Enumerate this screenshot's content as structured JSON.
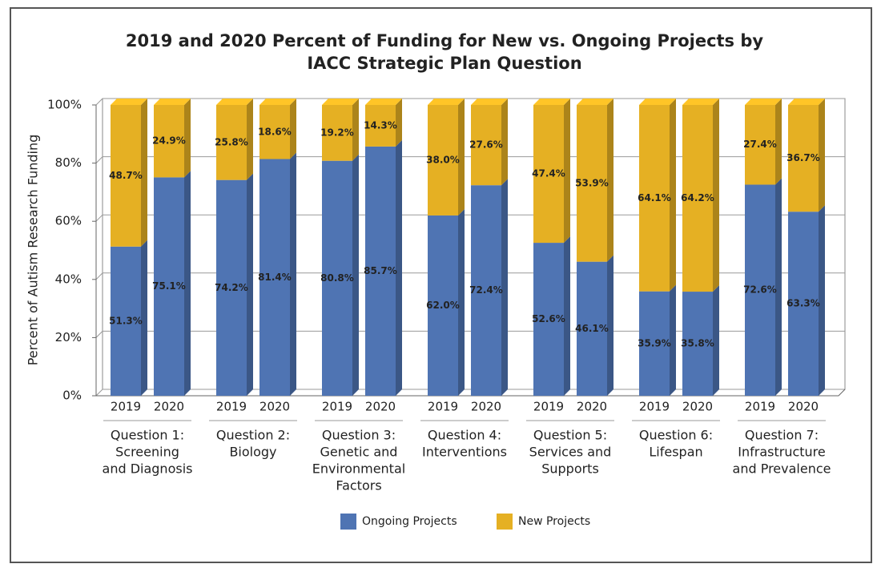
{
  "chart_data": {
    "type": "stacked-bar-3d",
    "title": [
      "2019 and 2020 Percent of Funding for New vs. Ongoing Projects by",
      "IACC Strategic Plan Question"
    ],
    "ylabel": "Percent of Autism Research Funding",
    "categories": [
      "2019",
      "2020",
      "2019",
      "2020",
      "2019",
      "2020",
      "2019",
      "2020",
      "2019",
      "2020",
      "2019",
      "2020",
      "2019",
      "2020"
    ],
    "groups": [
      [
        "Question 1:",
        "Screening",
        "and Diagnosis"
      ],
      [
        "Question 2:",
        "Biology"
      ],
      [
        "Question 3:",
        "Genetic and",
        "Environmental",
        "Factors"
      ],
      [
        "Question 4:",
        "Interventions"
      ],
      [
        "Question 5:",
        "Services and",
        "Supports"
      ],
      [
        "Question 6:",
        "Lifespan"
      ],
      [
        "Question 7:",
        "Infrastructure",
        "and Prevalence"
      ]
    ],
    "series": [
      {
        "name": "Ongoing Projects",
        "color": "#4f74b3",
        "values": [
          51.3,
          75.1,
          74.2,
          81.4,
          80.8,
          85.7,
          62.0,
          72.4,
          52.6,
          46.1,
          35.9,
          35.8,
          72.6,
          63.3
        ],
        "value_labels": [
          "51.3%",
          "75.1%",
          "74.2%",
          "81.4%",
          "80.8%",
          "85.7%",
          "62.0%",
          "72.4%",
          "52.6%",
          "46.1%",
          "35.9%",
          "35.8%",
          "72.6%",
          "63.3%"
        ]
      },
      {
        "name": "New Projects",
        "color": "#e5b023",
        "values": [
          48.7,
          24.9,
          25.8,
          18.6,
          19.2,
          14.3,
          38.0,
          27.6,
          47.4,
          53.9,
          64.1,
          64.2,
          27.4,
          36.7
        ],
        "value_labels": [
          "48.7%",
          "24.9%",
          "25.8%",
          "18.6%",
          "19.2%",
          "14.3%",
          "38.0%",
          "27.6%",
          "47.4%",
          "53.9%",
          "64.1%",
          "64.2%",
          "27.4%",
          "36.7%"
        ]
      }
    ],
    "ylim": [
      0,
      100
    ],
    "yticks": [
      {
        "value": 0,
        "label": "0%"
      },
      {
        "value": 20,
        "label": "20%"
      },
      {
        "value": 40,
        "label": "40%"
      },
      {
        "value": 60,
        "label": "60%"
      },
      {
        "value": 80,
        "label": "80%"
      },
      {
        "value": 100,
        "label": "100%"
      }
    ],
    "grid": true
  }
}
